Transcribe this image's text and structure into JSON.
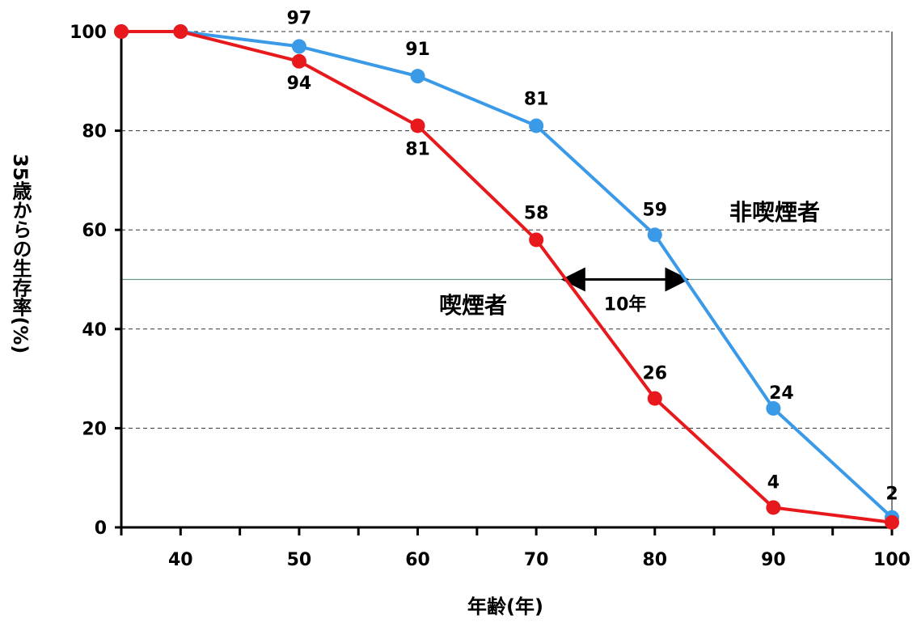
{
  "chart_data": {
    "type": "line",
    "xlabel": "年齢(年)",
    "ylabel": "35歳からの生存率(%)",
    "xlim": [
      35,
      100
    ],
    "ylim": [
      0,
      100
    ],
    "x_ticks": [
      40,
      50,
      60,
      70,
      80,
      90,
      100
    ],
    "y_ticks": [
      0,
      20,
      40,
      60,
      80,
      100
    ],
    "grid": "horizontal dashed",
    "reference_line": 50,
    "series": [
      {
        "name": "非喫煙者",
        "color": "#3a9ae8",
        "x": [
          35,
          40,
          50,
          60,
          70,
          80,
          90,
          100
        ],
        "y": [
          100,
          100,
          97,
          91,
          81,
          59,
          24,
          2
        ],
        "labels": [
          "",
          "",
          "97",
          "91",
          "81",
          "59",
          "24",
          "2"
        ]
      },
      {
        "name": "喫煙者",
        "color": "#e8191c",
        "x": [
          35,
          40,
          50,
          60,
          70,
          80,
          90,
          100
        ],
        "y": [
          100,
          100,
          94,
          81,
          58,
          26,
          4,
          1
        ],
        "labels": [
          "",
          "",
          "94",
          "81",
          "58",
          "26",
          "4",
          ""
        ]
      }
    ],
    "annotation": {
      "text": "10年",
      "from_x": 72.5,
      "to_x": 82.5,
      "y": 50
    }
  }
}
